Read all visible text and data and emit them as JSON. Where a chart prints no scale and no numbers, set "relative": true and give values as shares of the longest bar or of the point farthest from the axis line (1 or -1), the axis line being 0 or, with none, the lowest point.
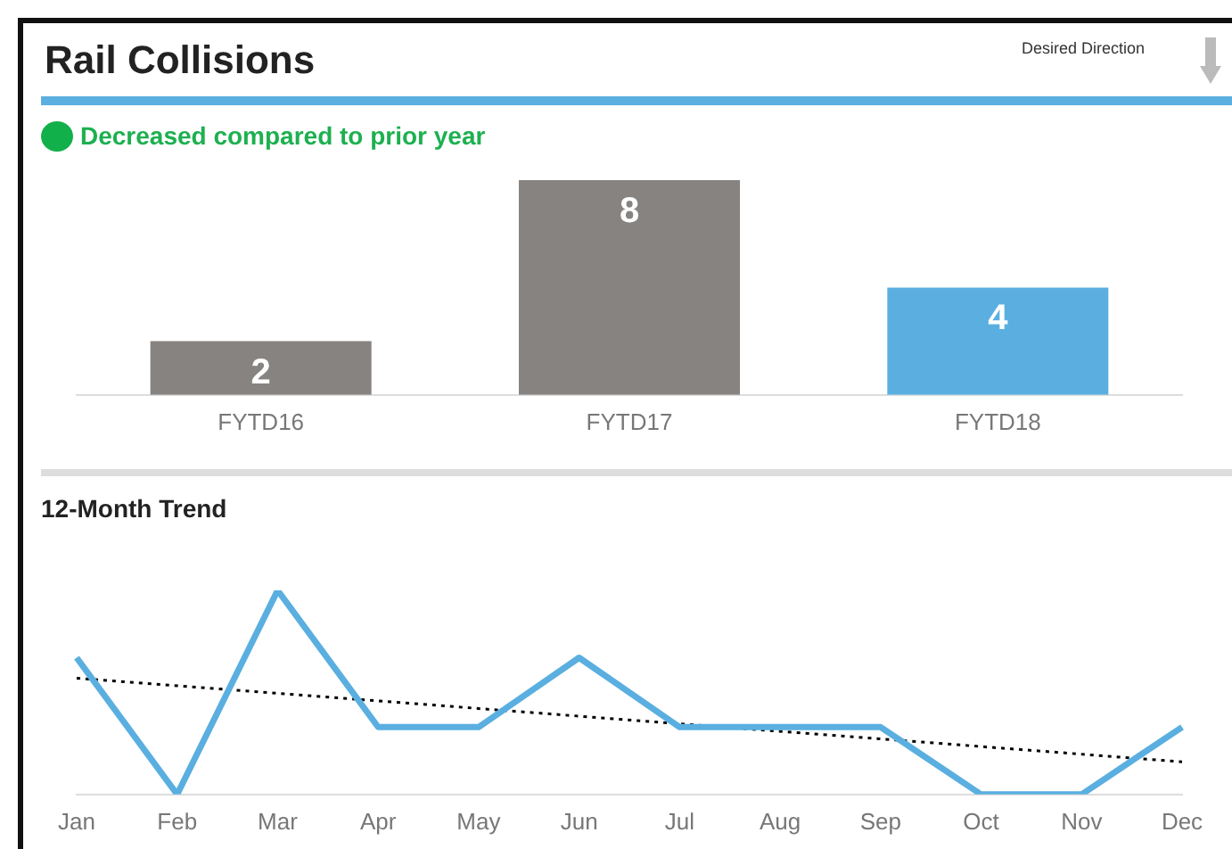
{
  "chart_data": [
    {
      "type": "bar",
      "title": "Rail Collisions",
      "subtitle": "Decreased compared to prior year",
      "annotations": [
        "Desired Direction"
      ],
      "categories": [
        "FYTD16",
        "FYTD17",
        "FYTD18"
      ],
      "values": [
        2,
        8,
        4
      ],
      "colors": [
        "#878381",
        "#878381",
        "#5aafe0"
      ],
      "data_labels": true,
      "tick_labels": "x",
      "grid": false,
      "legend": false
    },
    {
      "type": "line",
      "title": "12-Month Trend",
      "relative": true,
      "categories": [
        "Jan",
        "Feb",
        "Mar",
        "Apr",
        "May",
        "Jun",
        "Jul",
        "Aug",
        "Sep",
        "Oct",
        "Nov",
        "Dec"
      ],
      "marker": "none",
      "grid": false,
      "legend": false,
      "series": [
        {
          "color": "#5aafe0",
          "values": [
            0.67,
            0,
            1,
            0.33,
            0.33,
            0.67,
            0.33,
            0.33,
            0.33,
            0,
            0,
            0.33
          ]
        },
        {
          "type": "line",
          "x": [
            "Jan",
            "Dec"
          ],
          "values": [
            0.57,
            0.16
          ],
          "color": "#000000",
          "line_style": "dotted"
        }
      ]
    }
  ]
}
